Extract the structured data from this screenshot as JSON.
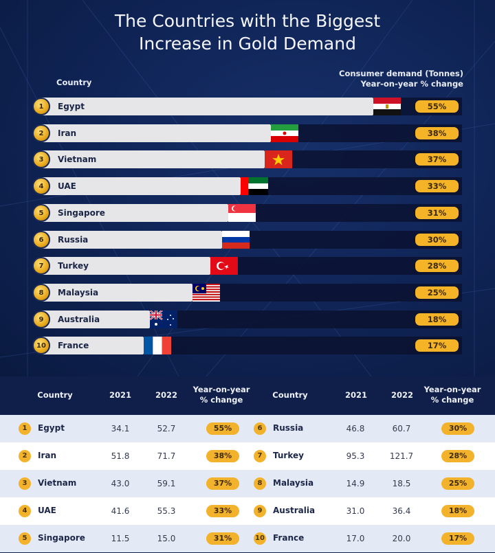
{
  "title_line1": "The Countries with the Biggest",
  "title_line2": "Increase in Gold Demand",
  "header": {
    "country": "Country",
    "right_line1": "Consumer demand (Tonnes)",
    "right_line2": "Year-on-year % change"
  },
  "table_headers": {
    "country": "Country",
    "y2021": "2021",
    "y2022": "2022",
    "yoy_line1": "Year-on-year",
    "yoy_line2": "% change"
  },
  "colors": {
    "background": "#0f1f4a",
    "bar": "#e6e6e9",
    "accent_gold": "#f5b327",
    "row_alt": "#e4eaf5"
  },
  "chart_data": {
    "type": "bar",
    "orientation": "horizontal",
    "title": "The Countries with the Biggest Increase in Gold Demand",
    "xlabel": "Consumer demand (Tonnes)",
    "ylabel": "Country",
    "categories": [
      "Egypt",
      "Iran",
      "Vietnam",
      "UAE",
      "Singapore",
      "Russia",
      "Turkey",
      "Malaysia",
      "Australia",
      "France"
    ],
    "series": [
      {
        "name": "2021",
        "values": [
          34.1,
          51.8,
          43.0,
          41.6,
          11.5,
          46.8,
          95.3,
          14.9,
          31.0,
          17.0
        ]
      },
      {
        "name": "2022",
        "values": [
          52.7,
          71.7,
          59.1,
          55.3,
          15.0,
          60.7,
          121.7,
          18.5,
          36.4,
          20.0
        ]
      },
      {
        "name": "Year-on-year % change",
        "values": [
          55,
          38,
          37,
          33,
          31,
          30,
          28,
          25,
          18,
          17
        ]
      }
    ],
    "bar_measure": "Year-on-year % change",
    "xlim": [
      0,
      60
    ],
    "grid": false,
    "legend": "none"
  },
  "rows": [
    {
      "rank": "1",
      "country": "Egypt",
      "y2021": "34.1",
      "y2022": "52.7",
      "pct": "55%",
      "pct_value": 55,
      "flag": "egypt-flag"
    },
    {
      "rank": "2",
      "country": "Iran",
      "y2021": "51.8",
      "y2022": "71.7",
      "pct": "38%",
      "pct_value": 38,
      "flag": "iran-flag"
    },
    {
      "rank": "3",
      "country": "Vietnam",
      "y2021": "43.0",
      "y2022": "59.1",
      "pct": "37%",
      "pct_value": 37,
      "flag": "vietnam-flag"
    },
    {
      "rank": "4",
      "country": "UAE",
      "y2021": "41.6",
      "y2022": "55.3",
      "pct": "33%",
      "pct_value": 33,
      "flag": "uae-flag"
    },
    {
      "rank": "5",
      "country": "Singapore",
      "y2021": "11.5",
      "y2022": "15.0",
      "pct": "31%",
      "pct_value": 31,
      "flag": "singapore-flag"
    },
    {
      "rank": "6",
      "country": "Russia",
      "y2021": "46.8",
      "y2022": "60.7",
      "pct": "30%",
      "pct_value": 30,
      "flag": "russia-flag"
    },
    {
      "rank": "7",
      "country": "Turkey",
      "y2021": "95.3",
      "y2022": "121.7",
      "pct": "28%",
      "pct_value": 28,
      "flag": "turkey-flag"
    },
    {
      "rank": "8",
      "country": "Malaysia",
      "y2021": "14.9",
      "y2022": "18.5",
      "pct": "25%",
      "pct_value": 25,
      "flag": "malaysia-flag"
    },
    {
      "rank": "9",
      "country": "Australia",
      "y2021": "31.0",
      "y2022": "36.4",
      "pct": "18%",
      "pct_value": 18,
      "flag": "australia-flag"
    },
    {
      "rank": "10",
      "country": "France",
      "y2021": "17.0",
      "y2022": "20.0",
      "pct": "17%",
      "pct_value": 17,
      "flag": "france-flag"
    }
  ]
}
